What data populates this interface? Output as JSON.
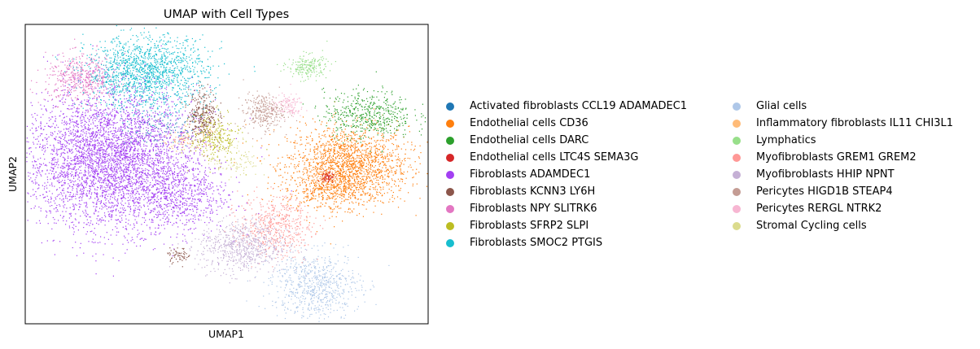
{
  "chart_data": {
    "type": "scatter",
    "title": "UMAP with Cell Types",
    "xlabel": "UMAP1",
    "ylabel": "UMAP2",
    "xlim": [
      0,
      100
    ],
    "ylim": [
      0,
      100
    ],
    "grid": false,
    "ticks": false,
    "legend_position": "right",
    "series": [
      {
        "name": "Activated fibroblasts CCL19 ADAMADEC1",
        "color": "#1f77b4",
        "clusters": [
          {
            "x": 34,
            "y": 65,
            "sx": 5,
            "sy": 3,
            "n": 120
          }
        ]
      },
      {
        "name": "Endothelial cells CD36",
        "color": "#ff7f0e",
        "clusters": [
          {
            "x": 80,
            "y": 53,
            "sx": 7.5,
            "sy": 6.5,
            "n": 1800
          },
          {
            "x": 75,
            "y": 45,
            "sx": 5,
            "sy": 3,
            "n": 300
          }
        ]
      },
      {
        "name": "Endothelial cells DARC",
        "color": "#2ca02c",
        "clusters": [
          {
            "x": 85,
            "y": 70,
            "sx": 5.5,
            "sy": 4,
            "n": 500
          }
        ]
      },
      {
        "name": "Endothelial cells LTC4S SEMA3G",
        "color": "#d62728",
        "clusters": [
          {
            "x": 75,
            "y": 49,
            "sx": 0.8,
            "sy": 1.2,
            "n": 60
          }
        ]
      },
      {
        "name": "Fibroblasts ADAMDEC1",
        "color": "#a33ff2",
        "clusters": [
          {
            "x": 21,
            "y": 55,
            "sx": 10.5,
            "sy": 11.5,
            "n": 4200
          },
          {
            "x": 38,
            "y": 43,
            "sx": 6,
            "sy": 6,
            "n": 600
          }
        ]
      },
      {
        "name": "Fibroblasts KCNN3 LY6H",
        "color": "#8c564b",
        "clusters": [
          {
            "x": 44,
            "y": 70,
            "sx": 1.8,
            "sy": 4.5,
            "n": 300
          },
          {
            "x": 38,
            "y": 23,
            "sx": 1.5,
            "sy": 1.2,
            "n": 60
          }
        ]
      },
      {
        "name": "Fibroblasts NPY SLITRK6",
        "color": "#e377c2",
        "clusters": [
          {
            "x": 14,
            "y": 82,
            "sx": 4.5,
            "sy": 4,
            "n": 500
          }
        ]
      },
      {
        "name": "Fibroblasts SFRP2 SLPI",
        "color": "#bcbd22",
        "clusters": [
          {
            "x": 47,
            "y": 62,
            "sx": 3,
            "sy": 4,
            "n": 250
          }
        ]
      },
      {
        "name": "Fibroblasts SMOC2 PTGIS",
        "color": "#17becf",
        "clusters": [
          {
            "x": 30,
            "y": 84,
            "sx": 7.5,
            "sy": 6,
            "n": 1500
          }
        ]
      },
      {
        "name": "Glial cells",
        "color": "#aec7e8",
        "clusters": [
          {
            "x": 72,
            "y": 13,
            "sx": 5.5,
            "sy": 5.5,
            "n": 700
          }
        ]
      },
      {
        "name": "Inflammatory fibroblasts IL11 CHI3L1",
        "color": "#ffbb78",
        "clusters": [
          {
            "x": 40,
            "y": 62,
            "sx": 3,
            "sy": 2,
            "n": 80
          }
        ]
      },
      {
        "name": "Lymphatics",
        "color": "#98df8a",
        "clusters": [
          {
            "x": 70,
            "y": 86,
            "sx": 2.5,
            "sy": 2,
            "n": 200
          }
        ]
      },
      {
        "name": "Myofibroblasts GREM1 GREM2",
        "color": "#ff9896",
        "clusters": [
          {
            "x": 62,
            "y": 33,
            "sx": 4.5,
            "sy": 5,
            "n": 500
          }
        ]
      },
      {
        "name": "Myofibroblasts HHIP NPNT",
        "color": "#c5b0d5",
        "clusters": [
          {
            "x": 54,
            "y": 26,
            "sx": 5.5,
            "sy": 4.5,
            "n": 700
          }
        ]
      },
      {
        "name": "Pericytes HIGD1B STEAP4",
        "color": "#c49c94",
        "clusters": [
          {
            "x": 59,
            "y": 71,
            "sx": 2.5,
            "sy": 3,
            "n": 300
          }
        ]
      },
      {
        "name": "Pericytes RERGL NTRK2",
        "color": "#f7b6d2",
        "clusters": [
          {
            "x": 65,
            "y": 73,
            "sx": 2,
            "sy": 2,
            "n": 120
          }
        ]
      },
      {
        "name": "Stromal Cycling cells",
        "color": "#dbdb8d",
        "clusters": [
          {
            "x": 52,
            "y": 55,
            "sx": 3,
            "sy": 3,
            "n": 100
          }
        ]
      }
    ]
  }
}
